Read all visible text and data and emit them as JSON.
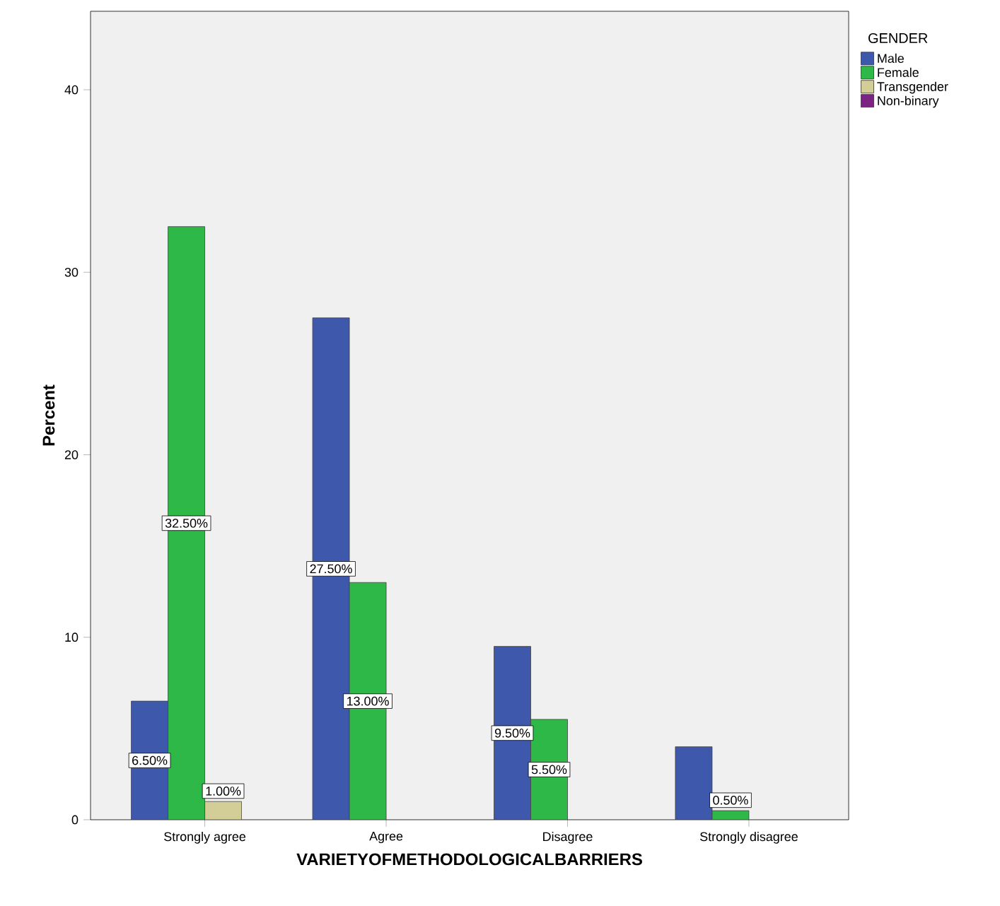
{
  "chart_data": {
    "type": "bar",
    "xlabel": "VARIETYOFMETHODOLOGICALBARRIERS",
    "ylabel": "Percent",
    "legend_title": "GENDER",
    "legend": "top right",
    "categories": [
      "Strongly agree",
      "Agree",
      "Disagree",
      "Strongly disagree"
    ],
    "series": [
      {
        "name": "Male",
        "color": "#3e58ac",
        "values": [
          6.5,
          27.5,
          9.5,
          4.0
        ],
        "value_labels": [
          "6.50%",
          "27.50%",
          "9.50%",
          null
        ]
      },
      {
        "name": "Female",
        "color": "#2eb848",
        "values": [
          32.5,
          13.0,
          5.5,
          0.5
        ],
        "value_labels": [
          "32.50%",
          "13.00%",
          "5.50%",
          "0.50%"
        ]
      },
      {
        "name": "Transgender",
        "color": "#d3ce97",
        "values": [
          1.0,
          null,
          null,
          null
        ],
        "value_labels": [
          "1.00%",
          null,
          null,
          null
        ]
      },
      {
        "name": "Non-binary",
        "color": "#7b2481",
        "values": [
          null,
          null,
          null,
          null
        ]
      }
    ],
    "ylim": [
      0,
      44.3
    ],
    "yticks": [
      0,
      10,
      20,
      30,
      40
    ]
  }
}
